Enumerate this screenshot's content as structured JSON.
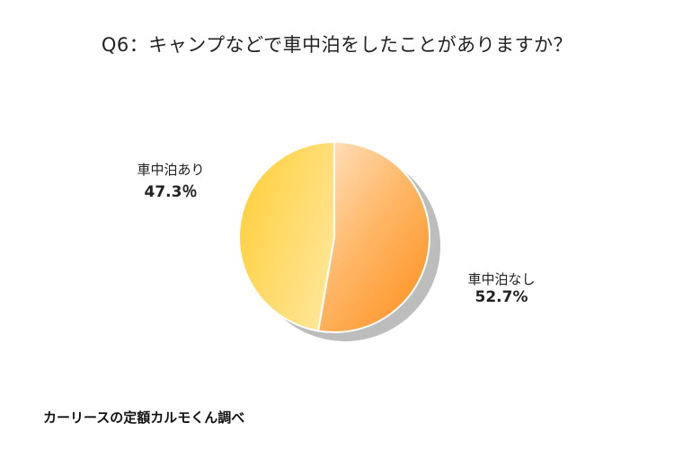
{
  "chart_data": {
    "type": "pie",
    "title": "Q6：キャンプなどで車中泊をしたことがありますか？",
    "slices": [
      {
        "label": "車中泊なし",
        "value": 52.7,
        "value_label": "52.7%",
        "color": "#ff9a33"
      },
      {
        "label": "車中泊あり",
        "value": 47.3,
        "value_label": "47.3％",
        "color": "#ffd24a"
      }
    ],
    "start_angle_deg": 0,
    "direction": "clockwise",
    "legend": "none",
    "shadow": true
  },
  "footer": {
    "source": "カーリースの定額カルモくん調べ"
  }
}
